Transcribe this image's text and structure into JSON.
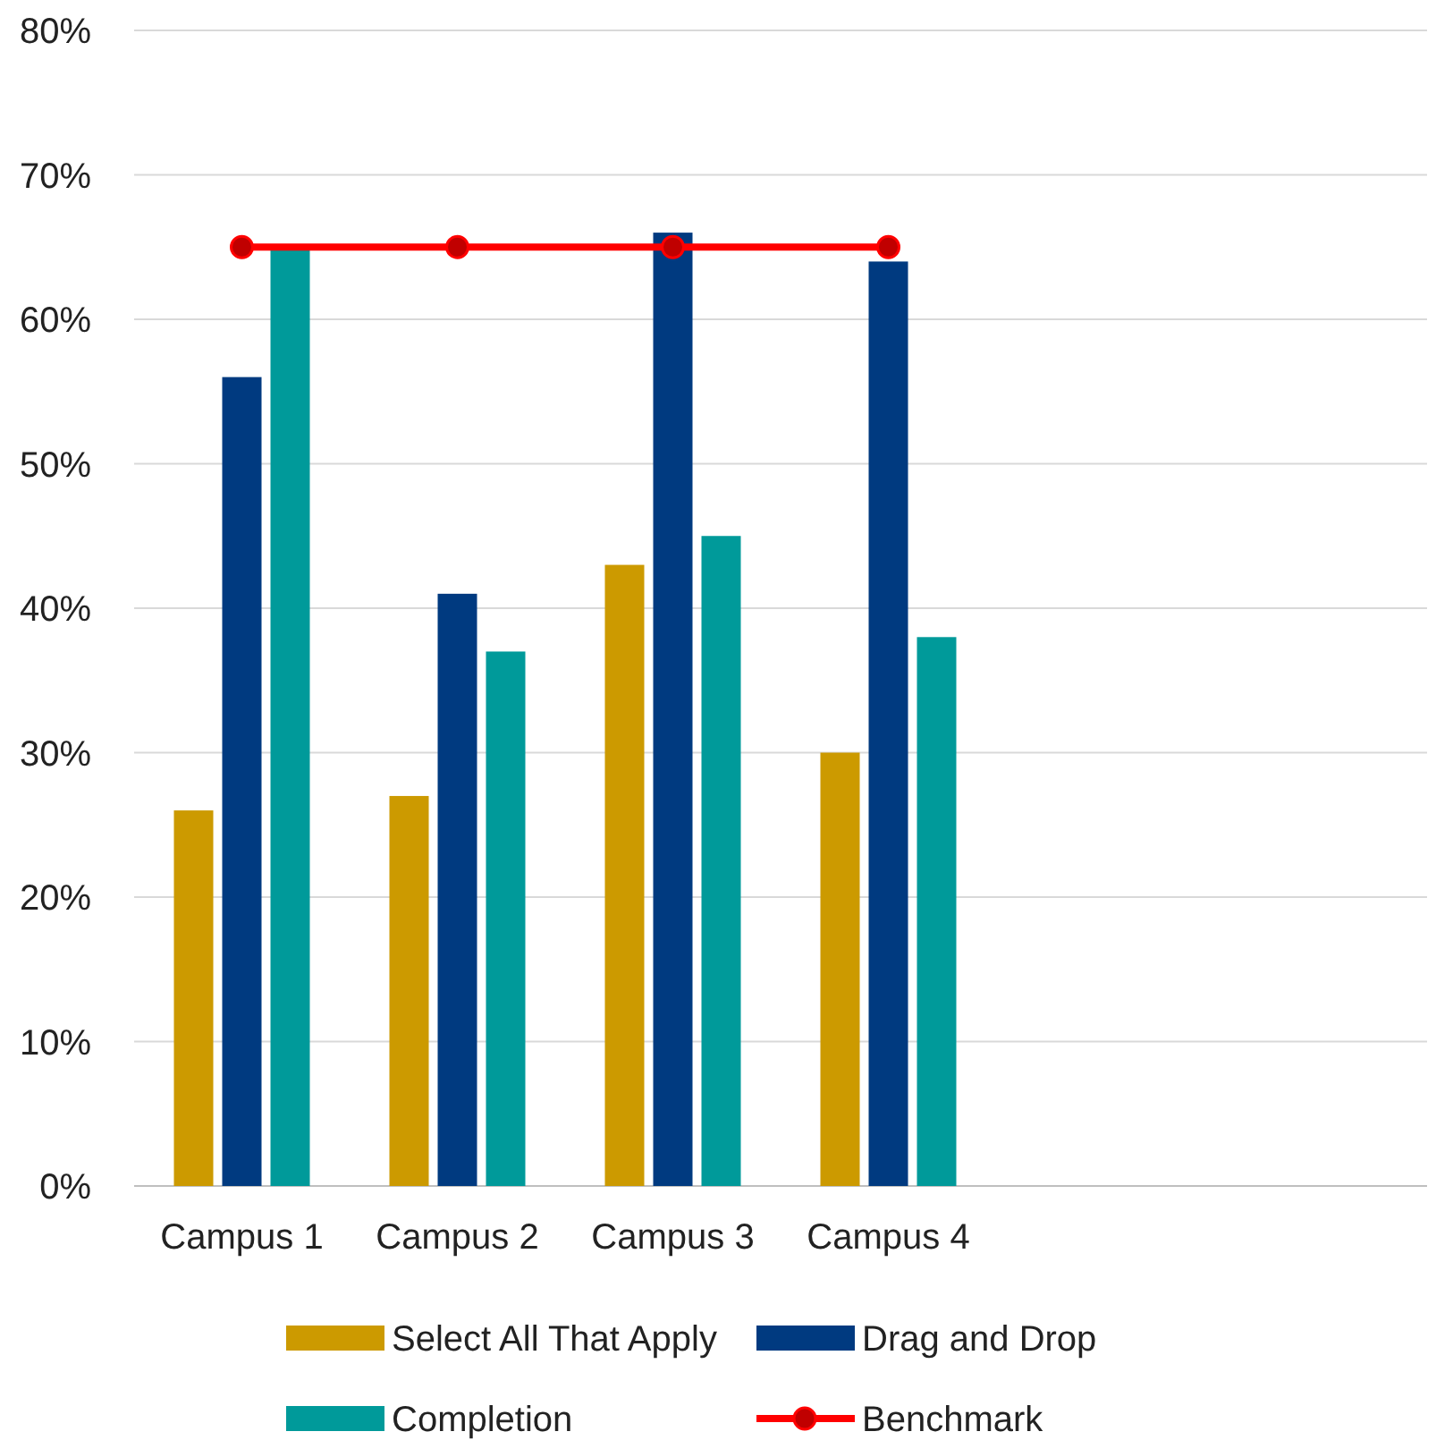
{
  "chart_data": {
    "type": "bar",
    "categories": [
      "Campus 1",
      "Campus 2",
      "Campus 3",
      "Campus 4",
      null,
      null
    ],
    "series": [
      {
        "name": "Select All That Apply",
        "color": "#cc9a00",
        "values": [
          26,
          27,
          43,
          30,
          null,
          null
        ]
      },
      {
        "name": "Drag and Drop",
        "color": "#003a80",
        "values": [
          56,
          41,
          66,
          64,
          null,
          null
        ]
      },
      {
        "name": "Completion",
        "color": "#009a9a",
        "values": [
          65,
          37,
          45,
          38,
          null,
          null
        ]
      },
      {
        "name": "Benchmark",
        "type": "line",
        "color": "#ff0000",
        "marker": "circle",
        "values": [
          65,
          65,
          65,
          65,
          null,
          null
        ]
      }
    ],
    "ylim": [
      0,
      80
    ],
    "yticks": [
      {
        "value": 0,
        "label": "0%"
      },
      {
        "value": 10,
        "label": "10%"
      },
      {
        "value": 20,
        "label": "20%"
      },
      {
        "value": 30,
        "label": "30%"
      },
      {
        "value": 40,
        "label": "40%"
      },
      {
        "value": 50,
        "label": "50%"
      },
      {
        "value": 60,
        "label": "60%"
      },
      {
        "value": 70,
        "label": "70%"
      },
      {
        "value": 80,
        "label": "80%"
      }
    ],
    "grid": "y",
    "legend": "bottom"
  }
}
